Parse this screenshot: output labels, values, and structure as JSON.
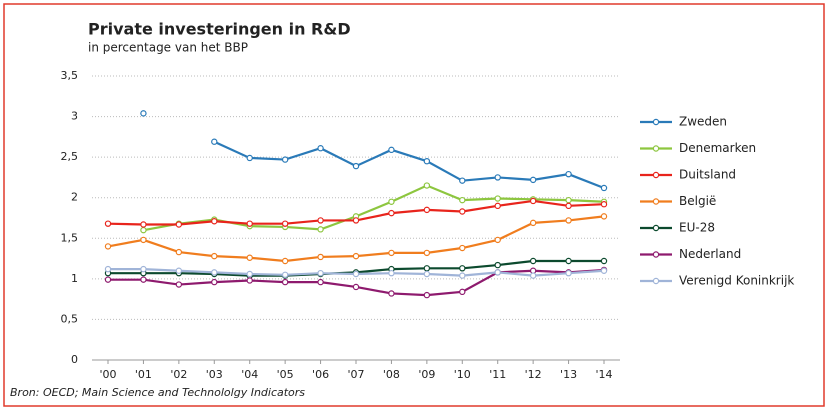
{
  "chart_data": {
    "type": "line",
    "title": "Private investeringen in R&D",
    "subtitle": "in percentage van het BBP",
    "source": "Bron: OECD; Main Science and Technololgy Indicators",
    "categories": [
      "'00",
      "'01",
      "'02",
      "'03",
      "'04",
      "'05",
      "'06",
      "'07",
      "'08",
      "'09",
      "'10",
      "'11",
      "'12",
      "'13",
      "'14"
    ],
    "ylim": [
      0,
      3.5
    ],
    "yticks": [
      0,
      {
        "value": 0.5,
        "label": "0,5"
      },
      1,
      {
        "value": 1.5,
        "label": "1,5"
      },
      2,
      {
        "value": 2.5,
        "label": "2,5"
      },
      3,
      {
        "value": 3.5,
        "label": "3,5"
      }
    ],
    "grid": true,
    "series": [
      {
        "name": "Zweden",
        "color": "#2a7ab8",
        "values": [
          null,
          3.04,
          null,
          2.69,
          2.49,
          2.47,
          2.61,
          2.39,
          2.59,
          2.45,
          2.21,
          2.25,
          2.22,
          2.29,
          2.12
        ]
      },
      {
        "name": "Denemarken",
        "color": "#8dc63f",
        "values": [
          null,
          1.6,
          1.68,
          1.73,
          1.65,
          1.64,
          1.61,
          1.77,
          1.95,
          2.15,
          1.97,
          1.99,
          1.98,
          1.97,
          1.95
        ]
      },
      {
        "name": "Duitsland",
        "color": "#e8241c",
        "values": [
          1.68,
          1.67,
          1.67,
          1.71,
          1.68,
          1.68,
          1.72,
          1.72,
          1.81,
          1.85,
          1.83,
          1.9,
          1.96,
          1.9,
          1.92
        ]
      },
      {
        "name": "België",
        "color": "#f07d1e",
        "values": [
          1.4,
          1.48,
          1.33,
          1.28,
          1.26,
          1.22,
          1.27,
          1.28,
          1.32,
          1.32,
          1.38,
          1.48,
          1.69,
          1.72,
          1.77
        ]
      },
      {
        "name": "EU-28",
        "color": "#0c4a2e",
        "values": [
          1.07,
          1.07,
          1.07,
          1.06,
          1.04,
          1.04,
          1.06,
          1.08,
          1.12,
          1.13,
          1.13,
          1.17,
          1.22,
          1.22,
          1.22
        ]
      },
      {
        "name": "Nederland",
        "color": "#8e1a6e",
        "values": [
          0.99,
          0.99,
          0.93,
          0.96,
          0.98,
          0.96,
          0.96,
          0.9,
          0.82,
          0.8,
          0.84,
          1.08,
          1.1,
          1.08,
          1.11
        ]
      },
      {
        "name": "Verenigd Koninkrijk",
        "color": "#a0b4d8",
        "values": [
          1.12,
          1.12,
          1.1,
          1.08,
          1.06,
          1.05,
          1.07,
          1.06,
          1.07,
          1.06,
          1.04,
          1.08,
          1.04,
          1.07,
          1.1
        ]
      }
    ]
  }
}
